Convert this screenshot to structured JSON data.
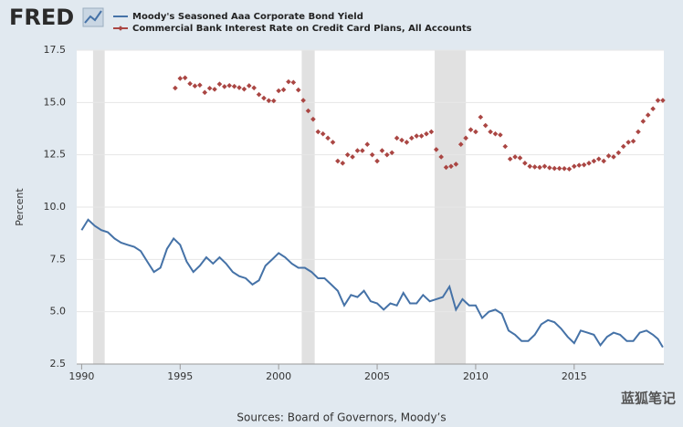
{
  "logo": "FRED",
  "watermark": "蓝狐笔记",
  "chart_data": {
    "type": "line",
    "ylabel": "Percent",
    "source": "Sources: Board of Governors, Moody’s",
    "xlim": [
      1989.75,
      2019.55
    ],
    "xticks": [
      1990,
      1995,
      2000,
      2005,
      2010,
      2015
    ],
    "ylim": [
      2.5,
      17.5
    ],
    "yticks": [
      2.5,
      {
        "value": 5,
        "label": "5.0"
      },
      7.5,
      {
        "value": 10,
        "label": "10.0"
      },
      12.5,
      {
        "value": 15,
        "label": "15.0"
      },
      17.5
    ],
    "grid": true,
    "recessions": [
      [
        1990.58,
        1991.17
      ],
      [
        2001.17,
        2001.83
      ],
      [
        2007.92,
        2009.5
      ]
    ],
    "series": [
      {
        "name": "Moody's Seasoned Aaa Corporate Bond Yield",
        "color": "#4572a7",
        "style": "line",
        "x": [
          1990,
          1990.33,
          1990.67,
          1991,
          1991.33,
          1991.67,
          1992,
          1992.33,
          1992.67,
          1993,
          1993.33,
          1993.67,
          1994,
          1994.33,
          1994.67,
          1995,
          1995.33,
          1995.67,
          1996,
          1996.33,
          1996.67,
          1997,
          1997.33,
          1997.67,
          1998,
          1998.33,
          1998.67,
          1999,
          1999.33,
          1999.67,
          2000,
          2000.33,
          2000.67,
          2001,
          2001.33,
          2001.67,
          2002,
          2002.33,
          2002.67,
          2003,
          2003.33,
          2003.67,
          2004,
          2004.33,
          2004.67,
          2005,
          2005.33,
          2005.67,
          2006,
          2006.33,
          2006.67,
          2007,
          2007.33,
          2007.67,
          2008,
          2008.33,
          2008.67,
          2009,
          2009.33,
          2009.67,
          2010,
          2010.33,
          2010.67,
          2011,
          2011.33,
          2011.67,
          2012,
          2012.33,
          2012.67,
          2013,
          2013.33,
          2013.67,
          2014,
          2014.33,
          2014.67,
          2015,
          2015.33,
          2015.67,
          2016,
          2016.33,
          2016.67,
          2017,
          2017.33,
          2017.67,
          2018,
          2018.33,
          2018.67,
          2019,
          2019.25,
          2019.5
        ],
        "values": [
          8.9,
          9.4,
          9.1,
          8.9,
          8.8,
          8.5,
          8.3,
          8.2,
          8.1,
          7.9,
          7.4,
          6.9,
          7.1,
          8.0,
          8.5,
          8.2,
          7.4,
          6.9,
          7.2,
          7.6,
          7.3,
          7.6,
          7.3,
          6.9,
          6.7,
          6.6,
          6.3,
          6.5,
          7.2,
          7.5,
          7.8,
          7.6,
          7.3,
          7.1,
          7.1,
          6.9,
          6.6,
          6.6,
          6.3,
          6.0,
          5.3,
          5.8,
          5.7,
          6.0,
          5.5,
          5.4,
          5.1,
          5.4,
          5.3,
          5.9,
          5.4,
          5.4,
          5.8,
          5.5,
          5.6,
          5.7,
          6.2,
          5.1,
          5.6,
          5.3,
          5.3,
          4.7,
          5.0,
          5.1,
          4.9,
          4.1,
          3.9,
          3.6,
          3.6,
          3.9,
          4.4,
          4.6,
          4.5,
          4.2,
          3.8,
          3.5,
          4.1,
          4.0,
          3.9,
          3.4,
          3.8,
          4.0,
          3.9,
          3.6,
          3.6,
          4.0,
          4.1,
          3.9,
          3.7,
          3.3
        ]
      },
      {
        "name": "Commercial Bank Interest Rate on Credit Card Plans, All Accounts",
        "color": "#aa4643",
        "style": "markers",
        "x": [
          1994.75,
          1995,
          1995.25,
          1995.5,
          1995.75,
          1996,
          1996.25,
          1996.5,
          1996.75,
          1997,
          1997.25,
          1997.5,
          1997.75,
          1998,
          1998.25,
          1998.5,
          1998.75,
          1999,
          1999.25,
          1999.5,
          1999.75,
          2000,
          2000.25,
          2000.5,
          2000.75,
          2001,
          2001.25,
          2001.5,
          2001.75,
          2002,
          2002.25,
          2002.5,
          2002.75,
          2003,
          2003.25,
          2003.5,
          2003.75,
          2004,
          2004.25,
          2004.5,
          2004.75,
          2005,
          2005.25,
          2005.5,
          2005.75,
          2006,
          2006.25,
          2006.5,
          2006.75,
          2007,
          2007.25,
          2007.5,
          2007.75,
          2008,
          2008.25,
          2008.5,
          2008.75,
          2009,
          2009.25,
          2009.5,
          2009.75,
          2010,
          2010.25,
          2010.5,
          2010.75,
          2011,
          2011.25,
          2011.5,
          2011.75,
          2012,
          2012.25,
          2012.5,
          2012.75,
          2013,
          2013.25,
          2013.5,
          2013.75,
          2014,
          2014.25,
          2014.5,
          2014.75,
          2015,
          2015.25,
          2015.5,
          2015.75,
          2016,
          2016.25,
          2016.5,
          2016.75,
          2017,
          2017.25,
          2017.5,
          2017.75,
          2018,
          2018.25,
          2018.5,
          2018.75,
          2019,
          2019.25,
          2019.5
        ],
        "values": [
          15.69,
          16.15,
          16.18,
          15.9,
          15.79,
          15.83,
          15.48,
          15.68,
          15.63,
          15.88,
          15.76,
          15.81,
          15.77,
          15.71,
          15.64,
          15.8,
          15.7,
          15.38,
          15.21,
          15.09,
          15.08,
          15.56,
          15.61,
          15.99,
          15.96,
          15.6,
          15.1,
          14.6,
          14.2,
          13.6,
          13.5,
          13.3,
          13.1,
          12.2,
          12.1,
          12.5,
          12.4,
          12.7,
          12.7,
          13.0,
          12.5,
          12.2,
          12.7,
          12.5,
          12.6,
          13.3,
          13.2,
          13.1,
          13.3,
          13.4,
          13.4,
          13.5,
          13.6,
          12.75,
          12.4,
          11.9,
          11.95,
          12.05,
          13.0,
          13.3,
          13.7,
          13.6,
          14.3,
          13.9,
          13.6,
          13.5,
          13.45,
          12.9,
          12.3,
          12.4,
          12.35,
          12.1,
          11.95,
          11.92,
          11.9,
          11.95,
          11.88,
          11.85,
          11.85,
          11.84,
          11.82,
          11.95,
          12.0,
          12.02,
          12.1,
          12.2,
          12.3,
          12.2,
          12.45,
          12.4,
          12.6,
          12.9,
          13.1,
          13.15,
          13.6,
          14.1,
          14.4,
          14.7,
          15.1,
          15.1
        ]
      }
    ]
  }
}
